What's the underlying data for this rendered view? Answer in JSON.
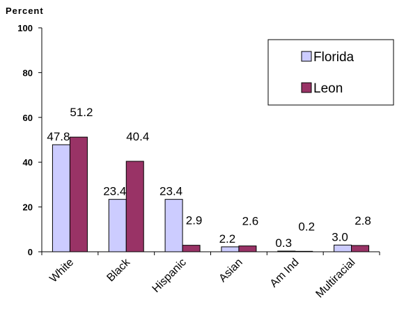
{
  "chart_data": {
    "type": "bar",
    "ylabel": "Percent",
    "xlabel": "",
    "ylim": [
      0,
      100
    ],
    "yticks": [
      0,
      20,
      40,
      60,
      80,
      100
    ],
    "categories": [
      "White",
      "Black",
      "Hispanic",
      "Asian",
      "Am Ind",
      "Multiracial"
    ],
    "series": [
      {
        "name": "Florida",
        "color": "#ccccff",
        "values": [
          47.8,
          23.4,
          23.4,
          2.2,
          0.3,
          3.0
        ],
        "labels": [
          "47.8",
          "23.4",
          "23.4",
          "2.2",
          "0.3",
          "3.0"
        ]
      },
      {
        "name": "Leon",
        "color": "#993366",
        "values": [
          51.2,
          40.4,
          2.9,
          2.6,
          0.2,
          2.8
        ],
        "labels": [
          "51.2",
          "40.4",
          "2.9",
          "2.6",
          "0.2",
          "2.8"
        ]
      }
    ],
    "legend_position": "top-right",
    "grid": false
  }
}
